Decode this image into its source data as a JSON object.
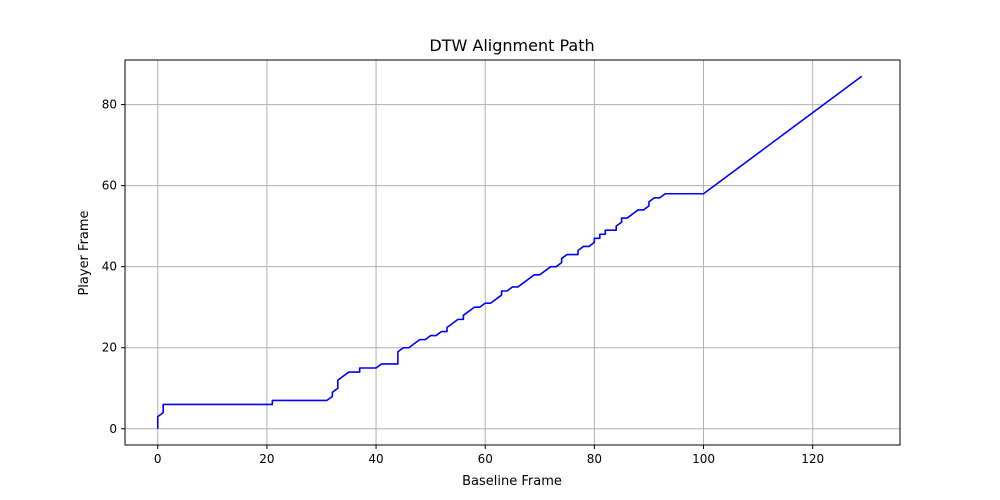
{
  "chart_data": {
    "type": "line",
    "title": "DTW Alignment Path",
    "xlabel": "Baseline Frame",
    "ylabel": "Player Frame",
    "xlim": [
      -6,
      136
    ],
    "ylim": [
      -4,
      91
    ],
    "grid": true,
    "x_ticks": [
      0,
      20,
      40,
      60,
      80,
      100,
      120
    ],
    "y_ticks": [
      0,
      20,
      40,
      60,
      80
    ],
    "x_tick_labels": [
      "0",
      "20",
      "40",
      "60",
      "80",
      "100",
      "120"
    ],
    "y_tick_labels": [
      "0",
      "20",
      "40",
      "60",
      "80"
    ],
    "series": [
      {
        "color": "#0000ff",
        "points": [
          [
            0,
            0
          ],
          [
            0,
            3
          ],
          [
            1,
            4
          ],
          [
            1,
            6
          ],
          [
            21,
            6
          ],
          [
            21,
            7
          ],
          [
            31,
            7
          ],
          [
            32,
            8
          ],
          [
            32,
            9
          ],
          [
            33,
            10
          ],
          [
            33,
            12
          ],
          [
            35,
            14
          ],
          [
            37,
            14
          ],
          [
            37,
            15
          ],
          [
            40,
            15
          ],
          [
            41,
            16
          ],
          [
            44,
            16
          ],
          [
            44,
            19
          ],
          [
            45,
            20
          ],
          [
            46,
            20
          ],
          [
            48,
            22
          ],
          [
            49,
            22
          ],
          [
            50,
            23
          ],
          [
            51,
            23
          ],
          [
            52,
            24
          ],
          [
            53,
            24
          ],
          [
            53,
            25
          ],
          [
            55,
            27
          ],
          [
            56,
            27
          ],
          [
            56,
            28
          ],
          [
            58,
            30
          ],
          [
            59,
            30
          ],
          [
            60,
            31
          ],
          [
            61,
            31
          ],
          [
            63,
            33
          ],
          [
            63,
            34
          ],
          [
            64,
            34
          ],
          [
            65,
            35
          ],
          [
            66,
            35
          ],
          [
            69,
            38
          ],
          [
            70,
            38
          ],
          [
            72,
            40
          ],
          [
            73,
            40
          ],
          [
            74,
            41
          ],
          [
            74,
            42
          ],
          [
            75,
            43
          ],
          [
            77,
            43
          ],
          [
            77,
            44
          ],
          [
            78,
            45
          ],
          [
            79,
            45
          ],
          [
            80,
            46
          ],
          [
            80,
            47
          ],
          [
            81,
            47
          ],
          [
            81,
            48
          ],
          [
            82,
            48
          ],
          [
            82,
            49
          ],
          [
            84,
            49
          ],
          [
            84,
            50
          ],
          [
            85,
            51
          ],
          [
            85,
            52
          ],
          [
            86,
            52
          ],
          [
            88,
            54
          ],
          [
            89,
            54
          ],
          [
            90,
            55
          ],
          [
            90,
            56
          ],
          [
            91,
            57
          ],
          [
            92,
            57
          ],
          [
            93,
            58
          ],
          [
            100,
            58
          ],
          [
            129,
            87
          ]
        ]
      }
    ]
  }
}
